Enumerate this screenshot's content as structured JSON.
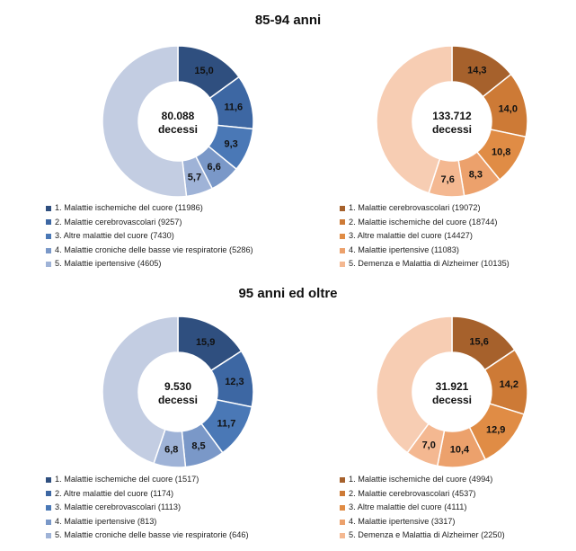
{
  "sections": [
    {
      "title": "85-94 anni"
    },
    {
      "title": "95 anni ed oltre"
    }
  ],
  "chart_data": [
    {
      "type": "pie",
      "variant": "donut",
      "center_value": "80.088",
      "center_label": "decessi",
      "values": [
        15.0,
        11.6,
        9.3,
        6.6,
        5.7,
        51.8
      ],
      "value_labels": [
        "15,0",
        "11,6",
        "9,3",
        "6,6",
        "5,7",
        ""
      ],
      "colors": [
        "#2f4f7f",
        "#3d67a3",
        "#4a78b6",
        "#7a98c8",
        "#9fb3d7",
        "#c3cde2"
      ],
      "legend": [
        "1. Malattie ischemiche del cuore (11986)",
        "2. Malattie cerebrovascolari (9257)",
        "3. Altre malattie del cuore (7430)",
        "4. Malattie croniche delle basse vie respiratorie (5286)",
        "5. Malattie ipertensive (4605)"
      ]
    },
    {
      "type": "pie",
      "variant": "donut",
      "center_value": "133.712",
      "center_label": "decessi",
      "values": [
        14.3,
        14.0,
        10.8,
        8.3,
        7.6,
        45.0
      ],
      "value_labels": [
        "14,3",
        "14,0",
        "10,8",
        "8,3",
        "7,6",
        ""
      ],
      "colors": [
        "#a6612c",
        "#cd7a36",
        "#e08c45",
        "#eca16c",
        "#f4b891",
        "#f7cdb3"
      ],
      "legend": [
        "1. Malattie cerebrovascolari (19072)",
        "2. Malattie ischemiche del cuore (18744)",
        "3. Altre malattie del cuore (14427)",
        "4. Malattie ipertensive (11083)",
        "5. Demenza e Malattia di Alzheimer (10135)"
      ]
    },
    {
      "type": "pie",
      "variant": "donut",
      "center_value": "9.530",
      "center_label": "decessi",
      "values": [
        15.9,
        12.3,
        11.7,
        8.5,
        6.8,
        44.8
      ],
      "value_labels": [
        "15,9",
        "12,3",
        "11,7",
        "8,5",
        "6,8",
        ""
      ],
      "colors": [
        "#2f4f7f",
        "#3d67a3",
        "#4a78b6",
        "#7a98c8",
        "#9fb3d7",
        "#c3cde2"
      ],
      "legend": [
        "1. Malattie ischemiche del cuore (1517)",
        "2. Altre malattie del cuore (1174)",
        "3. Malattie cerebrovascolari (1113)",
        "4. Malattie ipertensive (813)",
        "5. Malattie croniche delle basse vie respiratorie (646)"
      ]
    },
    {
      "type": "pie",
      "variant": "donut",
      "center_value": "31.921",
      "center_label": "decessi",
      "values": [
        15.6,
        14.2,
        12.9,
        10.4,
        7.0,
        39.9
      ],
      "value_labels": [
        "15,6",
        "14,2",
        "12,9",
        "10,4",
        "7,0",
        ""
      ],
      "colors": [
        "#a6612c",
        "#cd7a36",
        "#e08c45",
        "#eca16c",
        "#f4b891",
        "#f7cdb3"
      ],
      "legend": [
        "1. Malattie ischemiche del cuore (4994)",
        "2. Malattie cerebrovascolari (4537)",
        "3. Altre malattie del cuore (4111)",
        "4. Malattie ipertensive (3317)",
        "5. Demenza e Malattia di Alzheimer (2250)"
      ]
    }
  ]
}
